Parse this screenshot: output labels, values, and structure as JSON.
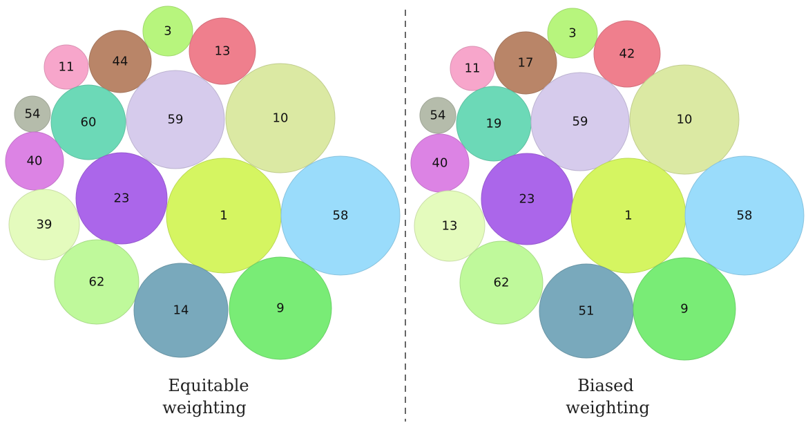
{
  "panels": [
    {
      "id": "equitable",
      "caption": [
        "Equitable",
        "weighting"
      ],
      "bubbles": [
        {
          "label": "3",
          "color": "#b7f57d"
        },
        {
          "label": "13",
          "color": "#ef7f8d"
        },
        {
          "label": "11",
          "color": "#f7a6cb"
        },
        {
          "label": "44",
          "color": "#b98568"
        },
        {
          "label": "54",
          "color": "#b5bcab"
        },
        {
          "label": "60",
          "color": "#6cd9b7"
        },
        {
          "label": "59",
          "color": "#d6cbec"
        },
        {
          "label": "10",
          "color": "#dbe9a3"
        },
        {
          "label": "40",
          "color": "#dc83e4"
        },
        {
          "label": "23",
          "color": "#ab66ea"
        },
        {
          "label": "1",
          "color": "#d5f561"
        },
        {
          "label": "58",
          "color": "#9adcfb"
        },
        {
          "label": "39",
          "color": "#e4fbbd"
        },
        {
          "label": "62",
          "color": "#bff99b"
        },
        {
          "label": "14",
          "color": "#79a9bc"
        },
        {
          "label": "9",
          "color": "#79ec76"
        }
      ]
    },
    {
      "id": "biased",
      "caption": [
        "Biased",
        "weighting"
      ],
      "bubbles": [
        {
          "label": "3",
          "color": "#b7f57d"
        },
        {
          "label": "42",
          "color": "#ef7f8d"
        },
        {
          "label": "11",
          "color": "#f7a6cb"
        },
        {
          "label": "17",
          "color": "#b98568"
        },
        {
          "label": "54",
          "color": "#b5bcab"
        },
        {
          "label": "19",
          "color": "#6cd9b7"
        },
        {
          "label": "59",
          "color": "#d6cbec"
        },
        {
          "label": "10",
          "color": "#dbe9a3"
        },
        {
          "label": "40",
          "color": "#dc83e4"
        },
        {
          "label": "23",
          "color": "#ab66ea"
        },
        {
          "label": "1",
          "color": "#d5f561"
        },
        {
          "label": "58",
          "color": "#9adcfb"
        },
        {
          "label": "13",
          "color": "#e4fbbd"
        },
        {
          "label": "62",
          "color": "#bff99b"
        },
        {
          "label": "51",
          "color": "#79a9bc"
        },
        {
          "label": "9",
          "color": "#79ec76"
        }
      ]
    }
  ]
}
